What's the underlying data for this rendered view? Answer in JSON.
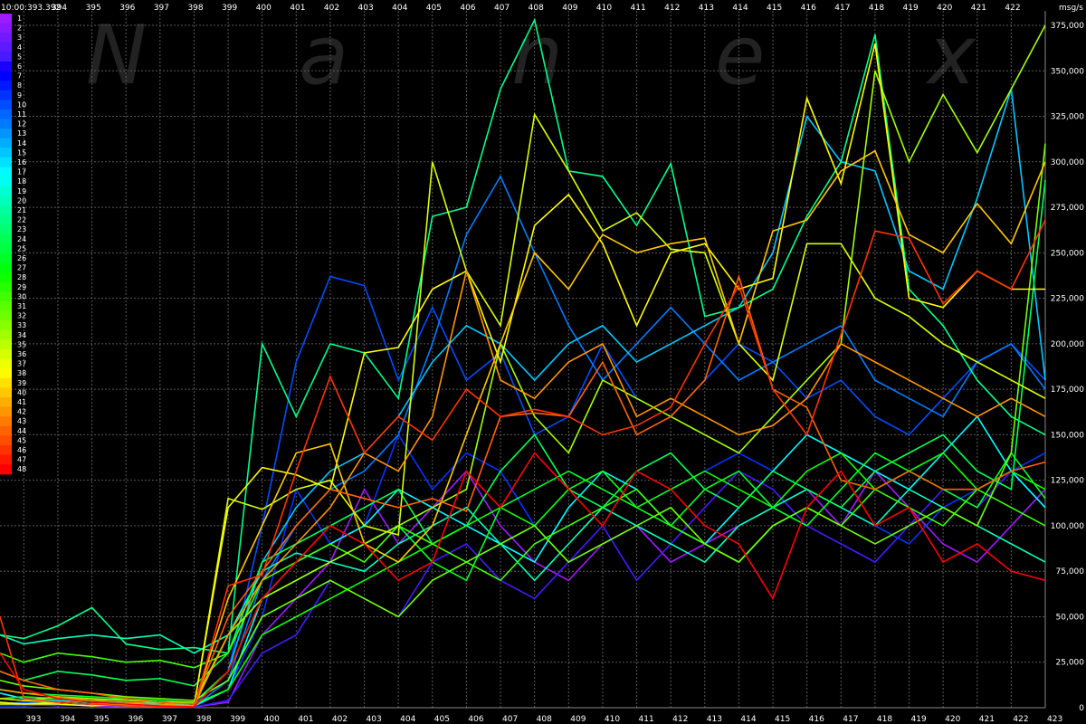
{
  "chart_data": {
    "type": "line",
    "watermark": [
      "N",
      "a",
      "n",
      "e",
      "x"
    ],
    "x_ticks": [
      "393",
      "394",
      "395",
      "396",
      "397",
      "398",
      "399",
      "400",
      "401",
      "402",
      "403",
      "404",
      "405",
      "406",
      "407",
      "408",
      "409",
      "410",
      "411",
      "412",
      "413",
      "414",
      "415",
      "416",
      "417",
      "418",
      "419",
      "420",
      "421",
      "422",
      "423"
    ],
    "top_time_label": "10:00:393.392",
    "top_x_ticks": [
      "394",
      "395",
      "396",
      "397",
      "398",
      "399",
      "400",
      "401",
      "402",
      "403",
      "404",
      "405",
      "406",
      "407",
      "408",
      "409",
      "410",
      "411",
      "412",
      "413",
      "414",
      "415",
      "416",
      "417",
      "418",
      "419",
      "420",
      "421",
      "422"
    ],
    "y_unit": "msg/s",
    "y_ticks": [
      "375,000",
      "350,000",
      "325,000",
      "300,000",
      "275,000",
      "250,000",
      "225,000",
      "200,000",
      "175,000",
      "150,000",
      "125,000",
      "100,000",
      "75,000",
      "50,000",
      "25,000",
      "0"
    ],
    "ylim": [
      0,
      375000
    ],
    "xlim": [
      392.3,
      423
    ],
    "grid": true,
    "legend_position": "left",
    "legend_labels": [
      "1",
      "2",
      "3",
      "4",
      "5",
      "6",
      "7",
      "8",
      "9",
      "10",
      "11",
      "12",
      "13",
      "14",
      "15",
      "16",
      "17",
      "18",
      "19",
      "20",
      "21",
      "22",
      "23",
      "24",
      "25",
      "26",
      "27",
      "28",
      "29",
      "30",
      "31",
      "32",
      "33",
      "34",
      "35",
      "36",
      "37",
      "38",
      "39",
      "40",
      "41",
      "42",
      "43",
      "44",
      "45",
      "46",
      "47",
      "48"
    ],
    "x": [
      392.3,
      393,
      394,
      395,
      396,
      397,
      398,
      399,
      400,
      401,
      402,
      403,
      404,
      405,
      406,
      407,
      408,
      409,
      410,
      411,
      412,
      413,
      414,
      415,
      416,
      417,
      418,
      419,
      420,
      421,
      422,
      423
    ],
    "series": [
      {
        "name": "1",
        "values": [
          3000,
          1000,
          2000,
          1000,
          500,
          800,
          400,
          3000,
          40000,
          60000,
          80000,
          120000,
          90000,
          110000,
          130000,
          100000,
          80000,
          70000,
          90000,
          100000,
          80000,
          90000,
          100000,
          110000,
          120000,
          100000,
          130000,
          110000,
          90000,
          80000,
          100000,
          120000
        ]
      },
      {
        "name": "5",
        "values": [
          2000,
          2000,
          1000,
          2000,
          1000,
          500,
          300,
          4000,
          30000,
          40000,
          70000,
          60000,
          50000,
          80000,
          90000,
          70000,
          60000,
          80000,
          100000,
          70000,
          90000,
          110000,
          130000,
          120000,
          100000,
          90000,
          80000,
          100000,
          120000,
          110000,
          130000,
          110000
        ]
      },
      {
        "name": "9",
        "values": [
          1000,
          1000,
          2000,
          1000,
          2000,
          1000,
          500,
          10000,
          50000,
          120000,
          90000,
          100000,
          150000,
          120000,
          140000,
          130000,
          100000,
          120000,
          130000,
          110000,
          120000,
          130000,
          140000,
          130000,
          120000,
          110000,
          100000,
          90000,
          110000,
          120000,
          130000,
          140000
        ]
      },
      {
        "name": "10",
        "values": [
          5000,
          4000,
          3000,
          2000,
          3000,
          2000,
          1000,
          20000,
          100000,
          190000,
          237000,
          232000,
          180000,
          220000,
          180000,
          195000,
          150000,
          160000,
          200000,
          170000,
          160000,
          180000,
          200000,
          190000,
          170000,
          180000,
          160000,
          150000,
          170000,
          190000,
          200000,
          180000
        ]
      },
      {
        "name": "12",
        "values": [
          2000,
          3000,
          2000,
          1000,
          2000,
          1000,
          500,
          15000,
          70000,
          100000,
          120000,
          130000,
          150000,
          200000,
          260000,
          292000,
          250000,
          210000,
          180000,
          200000,
          220000,
          200000,
          180000,
          190000,
          200000,
          210000,
          180000,
          170000,
          160000,
          190000,
          200000,
          175000
        ]
      },
      {
        "name": "15",
        "values": [
          3000,
          2000,
          3000,
          2000,
          1000,
          2000,
          1000,
          20000,
          80000,
          110000,
          130000,
          140000,
          160000,
          190000,
          210000,
          200000,
          180000,
          200000,
          210000,
          190000,
          200000,
          210000,
          220000,
          250000,
          325000,
          300000,
          295000,
          240000,
          230000,
          280000,
          340000,
          180000
        ]
      },
      {
        "name": "17",
        "values": [
          8000,
          5000,
          4000,
          3000,
          2000,
          3000,
          1000,
          10000,
          60000,
          80000,
          90000,
          100000,
          120000,
          110000,
          100000,
          90000,
          80000,
          110000,
          130000,
          120000,
          100000,
          90000,
          110000,
          130000,
          150000,
          140000,
          130000,
          120000,
          140000,
          160000,
          130000,
          110000
        ]
      },
      {
        "name": "20",
        "values": [
          40000,
          35000,
          38000,
          40000,
          38000,
          40000,
          30000,
          40000,
          75000,
          85000,
          80000,
          75000,
          90000,
          100000,
          110000,
          90000,
          70000,
          90000,
          110000,
          100000,
          90000,
          80000,
          100000,
          110000,
          120000,
          110000,
          100000,
          120000,
          110000,
          100000,
          90000,
          80000
        ]
      },
      {
        "name": "22",
        "values": [
          40000,
          38000,
          45000,
          55000,
          35000,
          32000,
          33000,
          30000,
          200000,
          160000,
          200000,
          195000,
          170000,
          270000,
          275000,
          340000,
          378000,
          295000,
          292000,
          265000,
          299000,
          215000,
          220000,
          230000,
          270000,
          300000,
          370000,
          230000,
          210000,
          180000,
          160000,
          150000
        ]
      },
      {
        "name": "24",
        "values": [
          20000,
          15000,
          20000,
          18000,
          15000,
          16000,
          12000,
          30000,
          80000,
          90000,
          100000,
          110000,
          120000,
          90000,
          100000,
          130000,
          150000,
          120000,
          110000,
          130000,
          140000,
          120000,
          110000,
          130000,
          120000,
          110000,
          130000,
          140000,
          150000,
          130000,
          120000,
          290000
        ]
      },
      {
        "name": "26",
        "values": [
          10000,
          8000,
          7000,
          6000,
          5000,
          4000,
          3000,
          20000,
          60000,
          70000,
          80000,
          90000,
          100000,
          80000,
          70000,
          110000,
          120000,
          130000,
          120000,
          110000,
          100000,
          120000,
          130000,
          110000,
          100000,
          120000,
          140000,
          130000,
          120000,
          110000,
          140000,
          115000
        ]
      },
      {
        "name": "28",
        "values": [
          5000,
          6000,
          5000,
          4000,
          5000,
          3000,
          2000,
          10000,
          40000,
          50000,
          60000,
          70000,
          80000,
          90000,
          100000,
          110000,
          100000,
          120000,
          130000,
          110000,
          120000,
          130000,
          120000,
          110000,
          130000,
          140000,
          120000,
          130000,
          140000,
          120000,
          130000,
          120000
        ]
      },
      {
        "name": "30",
        "values": [
          30000,
          25000,
          30000,
          28000,
          25000,
          26000,
          22000,
          30000,
          70000,
          80000,
          90000,
          80000,
          100000,
          90000,
          80000,
          70000,
          90000,
          100000,
          110000,
          120000,
          100000,
          90000,
          80000,
          100000,
          110000,
          100000,
          120000,
          110000,
          100000,
          120000,
          110000,
          100000
        ]
      },
      {
        "name": "32",
        "values": [
          15000,
          12000,
          10000,
          8000,
          6000,
          5000,
          4000,
          15000,
          50000,
          60000,
          70000,
          60000,
          50000,
          70000,
          80000,
          90000,
          100000,
          80000,
          90000,
          100000,
          110000,
          90000,
          80000,
          100000,
          110000,
          100000,
          90000,
          100000,
          110000,
          100000,
          140000,
          310000
        ]
      },
      {
        "name": "34",
        "values": [
          5000,
          4000,
          6000,
          5000,
          4000,
          3000,
          3000,
          40000,
          60000,
          70000,
          80000,
          90000,
          100000,
          110000,
          120000,
          200000,
          160000,
          140000,
          180000,
          170000,
          160000,
          150000,
          140000,
          160000,
          180000,
          200000,
          350000,
          300000,
          337000,
          305000,
          340000,
          375000
        ]
      },
      {
        "name": "36",
        "values": [
          2000,
          2000,
          3000,
          2000,
          1000,
          1000,
          500,
          115000,
          109000,
          120000,
          125000,
          100000,
          95000,
          300000,
          240000,
          210000,
          326000,
          295000,
          262000,
          272000,
          252000,
          250000,
          200000,
          180000,
          255000,
          255000,
          225000,
          215000,
          200000,
          190000,
          180000,
          170000
        ]
      },
      {
        "name": "38",
        "values": [
          3000,
          2000,
          2000,
          1000,
          2000,
          1000,
          1000,
          110000,
          132000,
          128000,
          120000,
          195000,
          198000,
          230000,
          240000,
          190000,
          265000,
          282000,
          255000,
          210000,
          250000,
          255000,
          230000,
          236000,
          335000,
          288000,
          365000,
          225000,
          220000,
          240000,
          230000,
          230000
        ]
      },
      {
        "name": "40",
        "values": [
          5000,
          4000,
          3000,
          2000,
          2000,
          1000,
          1000,
          60000,
          100000,
          140000,
          145000,
          90000,
          80000,
          100000,
          150000,
          200000,
          250000,
          230000,
          260000,
          250000,
          255000,
          258000,
          200000,
          262000,
          268000,
          295000,
          306000,
          260000,
          250000,
          277000,
          255000,
          300000
        ]
      },
      {
        "name": "42",
        "values": [
          10000,
          8000,
          6000,
          4000,
          3000,
          2000,
          1000,
          40000,
          70000,
          90000,
          110000,
          140000,
          130000,
          160000,
          240000,
          180000,
          170000,
          190000,
          200000,
          160000,
          170000,
          160000,
          150000,
          155000,
          170000,
          200000,
          190000,
          180000,
          170000,
          160000,
          170000,
          160000
        ]
      },
      {
        "name": "44",
        "values": [
          20000,
          15000,
          10000,
          8000,
          5000,
          3000,
          2000,
          50000,
          75000,
          100000,
          120000,
          115000,
          110000,
          115000,
          108000,
          160000,
          162000,
          160000,
          190000,
          150000,
          160000,
          180000,
          237000,
          175000,
          165000,
          125000,
          120000,
          130000,
          120000,
          120000,
          130000,
          135000
        ]
      },
      {
        "name": "46",
        "values": [
          50000,
          5000,
          3000,
          2000,
          1000,
          500,
          300,
          67000,
          73000,
          130000,
          182000,
          140000,
          160000,
          147000,
          175000,
          160000,
          164000,
          160000,
          150000,
          155000,
          165000,
          200000,
          232000,
          175000,
          150000,
          205000,
          262000,
          258000,
          222000,
          240000,
          230000,
          268000
        ]
      },
      {
        "name": "48",
        "values": [
          30000,
          10000,
          5000,
          3000,
          2000,
          1000,
          500,
          20000,
          60000,
          80000,
          100000,
          90000,
          70000,
          80000,
          130000,
          110000,
          140000,
          120000,
          100000,
          130000,
          120000,
          100000,
          90000,
          60000,
          110000,
          130000,
          100000,
          110000,
          80000,
          90000,
          75000,
          70000
        ]
      }
    ]
  }
}
